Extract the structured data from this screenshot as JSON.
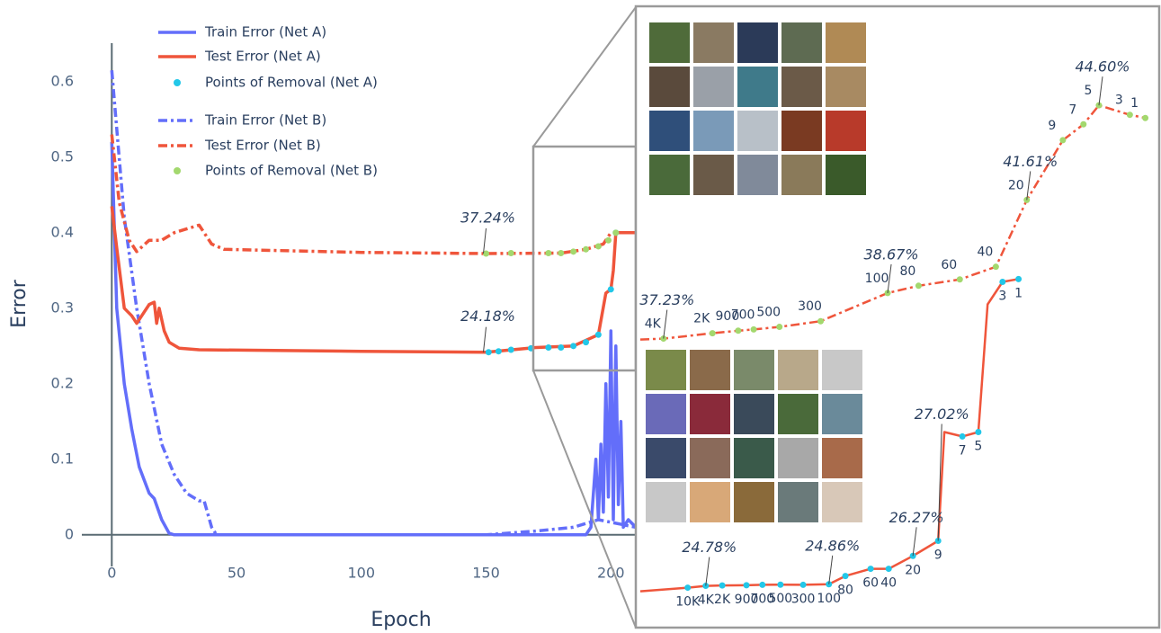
{
  "chart_data": [
    {
      "type": "line",
      "xlabel": "Epoch",
      "ylabel": "Error",
      "xlim": [
        -12,
        210
      ],
      "ylim": [
        -0.03,
        0.651
      ],
      "xticks": [
        0,
        50,
        100,
        150,
        200
      ],
      "yticks": [
        0,
        0.1,
        0.2,
        0.3,
        0.4,
        0.5,
        0.6
      ],
      "legend": "top-left",
      "grid": false,
      "series": [
        {
          "name": "Train Error (Net A)",
          "color": "#636efa",
          "dash": "solid",
          "x": [
            0,
            2,
            5,
            8,
            11,
            15,
            17,
            20,
            23,
            25,
            190,
            192,
            194,
            195,
            196,
            197,
            198,
            199,
            200,
            201,
            202,
            203,
            204,
            205,
            207,
            210
          ],
          "values": [
            0.52,
            0.3,
            0.2,
            0.14,
            0.09,
            0.055,
            0.048,
            0.02,
            0.002,
            0,
            0,
            0.01,
            0.1,
            0.02,
            0.12,
            0.03,
            0.2,
            0.05,
            0.27,
            0.02,
            0.25,
            0.04,
            0.15,
            0.01,
            0.02,
            0.01
          ]
        },
        {
          "name": "Test Error (Net A)",
          "color": "#ef553b",
          "dash": "solid",
          "x": [
            0,
            2,
            5,
            8,
            10,
            12,
            15,
            17,
            18,
            19,
            21,
            23,
            27,
            35,
            100,
            150,
            170,
            185,
            195,
            198,
            200,
            201,
            202,
            205,
            210
          ],
          "values": [
            0.435,
            0.38,
            0.3,
            0.29,
            0.28,
            0.29,
            0.305,
            0.308,
            0.28,
            0.3,
            0.27,
            0.255,
            0.247,
            0.245,
            0.243,
            0.2418,
            0.248,
            0.25,
            0.265,
            0.32,
            0.325,
            0.35,
            0.4,
            0.4,
            0.4
          ]
        },
        {
          "name": "Points of  Removal (Net A)",
          "color": "#22c7e8",
          "mode": "markers",
          "x": [
            151,
            155,
            160,
            168,
            175,
            180,
            185,
            190,
            195,
            200,
            202
          ],
          "values": [
            0.2418,
            0.243,
            0.245,
            0.247,
            0.248,
            0.248,
            0.25,
            0.255,
            0.265,
            0.325,
            0.4
          ]
        },
        {
          "name": "Train Error (Net B)",
          "color": "#636efa",
          "dash": "dashdot",
          "x": [
            0,
            5,
            10,
            15,
            20,
            25,
            30,
            35,
            37,
            40,
            42,
            150,
            170,
            185,
            195,
            210
          ],
          "values": [
            0.615,
            0.42,
            0.3,
            0.2,
            0.12,
            0.08,
            0.055,
            0.045,
            0.045,
            0.01,
            0,
            0,
            0.005,
            0.01,
            0.02,
            0.01
          ]
        },
        {
          "name": "Test Error (Net B)",
          "color": "#ef553b",
          "dash": "dashdot",
          "x": [
            0,
            3,
            7,
            10,
            15,
            20,
            25,
            30,
            35,
            40,
            45,
            100,
            150,
            180,
            190,
            197,
            200,
            205,
            210
          ],
          "values": [
            0.53,
            0.44,
            0.39,
            0.375,
            0.39,
            0.39,
            0.4,
            0.405,
            0.41,
            0.385,
            0.378,
            0.374,
            0.3724,
            0.373,
            0.378,
            0.385,
            0.4,
            0.4,
            0.4
          ]
        },
        {
          "name": "Points of Removal (Net B)",
          "color": "#a3d86e",
          "mode": "markers",
          "x": [
            150,
            160,
            175,
            180,
            185,
            190,
            195,
            199,
            202
          ],
          "values": [
            0.3724,
            0.373,
            0.373,
            0.373,
            0.375,
            0.378,
            0.382,
            0.39,
            0.4
          ]
        }
      ],
      "annotations": [
        {
          "text": "37.24%",
          "x": 150,
          "y": 0.3724
        },
        {
          "text": "24.18%",
          "x": 150,
          "y": 0.2418
        }
      ]
    },
    {
      "type": "line",
      "xlim": [
        0,
        100
      ],
      "ylim": [
        0.281,
        0.477
      ],
      "y2lim": [
        0.227,
        0.536
      ],
      "series": [
        {
          "color": "#ef553b",
          "dash": "dashdot",
          "marker_color": "#a3d86e",
          "x": [
            0,
            4.5,
            14,
            19,
            22,
            27,
            35,
            48,
            54,
            62,
            69,
            75,
            82,
            86,
            89,
            95,
            98
          ],
          "values": [
            0.372,
            0.3723,
            0.374,
            0.3748,
            0.3752,
            0.376,
            0.3778,
            0.3867,
            0.389,
            0.391,
            0.395,
            0.4161,
            0.435,
            0.44,
            0.446,
            0.443,
            0.442
          ],
          "point_labels": [
            null,
            "4K",
            "2K",
            "900",
            "700",
            "500",
            "300",
            "100",
            "80",
            "60",
            "40",
            "20",
            "9",
            "7",
            "5",
            "3",
            "1"
          ],
          "value_labels": [
            null,
            "37.23%",
            null,
            null,
            null,
            null,
            null,
            "38.67%",
            null,
            null,
            null,
            "41.61%",
            null,
            null,
            "44.60%",
            null,
            null
          ]
        },
        {
          "color": "#ef553b",
          "dash": "solid",
          "marker_color": "#22c7e8",
          "axis": "y2",
          "x": [
            0,
            9.2,
            12.7,
            15.9,
            20.6,
            23.7,
            27.2,
            31.6,
            36.6,
            39.8,
            44.7,
            48.2,
            52.9,
            57.8,
            59,
            62.5,
            65.6,
            67.4,
            70.3,
            73.4
          ],
          "values": [
            0.2451,
            0.2469,
            0.2478,
            0.248,
            0.2481,
            0.2483,
            0.2484,
            0.2483,
            0.2486,
            0.2527,
            0.2563,
            0.2563,
            0.2627,
            0.2702,
            0.3244,
            0.3222,
            0.3244,
            0.388,
            0.3992,
            0.4006
          ],
          "point_labels": [
            null,
            "10K",
            "4K",
            "2K",
            "900",
            "700",
            "500",
            "300",
            "100",
            "80",
            "60",
            "40",
            "20",
            "9",
            null,
            "7",
            "5",
            null,
            "3",
            "1"
          ],
          "value_labels": [
            null,
            null,
            "24.78%",
            null,
            null,
            null,
            null,
            null,
            "24.86%",
            null,
            null,
            null,
            "26.27%",
            "27.02%",
            null,
            null,
            null,
            null,
            null,
            null
          ]
        }
      ]
    }
  ]
}
